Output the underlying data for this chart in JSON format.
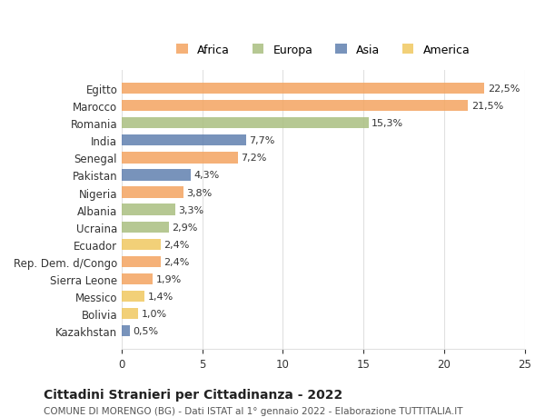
{
  "countries": [
    "Egitto",
    "Marocco",
    "Romania",
    "India",
    "Senegal",
    "Pakistan",
    "Nigeria",
    "Albania",
    "Ucraina",
    "Ecuador",
    "Rep. Dem. d/Congo",
    "Sierra Leone",
    "Messico",
    "Bolivia",
    "Kazakhstan"
  ],
  "values": [
    22.5,
    21.5,
    15.3,
    7.7,
    7.2,
    4.3,
    3.8,
    3.3,
    2.9,
    2.4,
    2.4,
    1.9,
    1.4,
    1.0,
    0.5
  ],
  "labels": [
    "22,5%",
    "21,5%",
    "15,3%",
    "7,7%",
    "7,2%",
    "4,3%",
    "3,8%",
    "3,3%",
    "2,9%",
    "2,4%",
    "2,4%",
    "1,9%",
    "1,4%",
    "1,0%",
    "0,5%"
  ],
  "bar_colors": [
    "#F4A460",
    "#F4A460",
    "#AABF80",
    "#6080B0",
    "#F4A460",
    "#6080B0",
    "#F4A460",
    "#AABF80",
    "#AABF80",
    "#F0C860",
    "#F4A460",
    "#F4A460",
    "#F0C860",
    "#F0C860",
    "#6080B0"
  ],
  "title": "Cittadini Stranieri per Cittadinanza - 2022",
  "subtitle": "COMUNE DI MORENGO (BG) - Dati ISTAT al 1° gennaio 2022 - Elaborazione TUTTITALIA.IT",
  "xlim": [
    0,
    25
  ],
  "xticks": [
    0,
    5,
    10,
    15,
    20,
    25
  ],
  "legend_labels": [
    "Africa",
    "Europa",
    "Asia",
    "America"
  ],
  "legend_colors": [
    "#F4A460",
    "#AABF80",
    "#6080B0",
    "#F0C860"
  ],
  "background_color": "#ffffff",
  "grid_color": "#e0e0e0"
}
